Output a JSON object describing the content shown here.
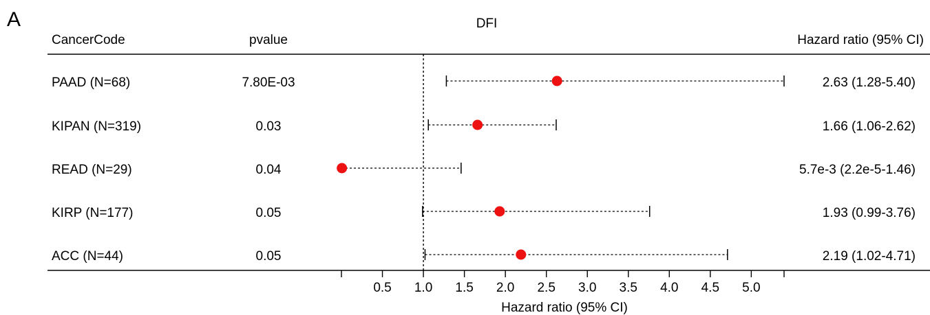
{
  "panel_label": "A",
  "chart_data": {
    "type": "forest",
    "title": "DFI",
    "headers": {
      "code": "CancerCode",
      "pvalue": "pvalue",
      "hr": "Hazard ratio (95% CI)"
    },
    "xlabel": "Hazard ratio (95% CI)",
    "xlim": [
      0,
      5.4
    ],
    "reference_line": 1.0,
    "ticks": [
      0,
      0.5,
      1.0,
      1.5,
      2.0,
      2.5,
      3.0,
      3.5,
      4.0,
      4.5,
      5.0,
      5.4
    ],
    "tick_labels": [
      "",
      "0.5",
      "1.0",
      "1.5",
      "2.0",
      "2.5",
      "3.0",
      "3.5",
      "4.0",
      "4.5",
      "5.0",
      ""
    ],
    "point_color": "#ee1111",
    "rows": [
      {
        "code": "PAAD (N=68)",
        "pvalue": "7.80E-03",
        "hr": 2.63,
        "lower": 1.28,
        "upper": 5.4,
        "hr_label": "2.63 (1.28-5.40)"
      },
      {
        "code": "KIPAN (N=319)",
        "pvalue": "0.03",
        "hr": 1.66,
        "lower": 1.06,
        "upper": 2.62,
        "hr_label": "1.66 (1.06-2.62)"
      },
      {
        "code": "READ (N=29)",
        "pvalue": "0.04",
        "hr": 0.0057,
        "lower": 2.2e-05,
        "upper": 1.46,
        "hr_label": "5.7e-3 (2.2e-5-1.46)"
      },
      {
        "code": "KIRP (N=177)",
        "pvalue": "0.05",
        "hr": 1.93,
        "lower": 0.99,
        "upper": 3.76,
        "hr_label": "1.93 (0.99-3.76)"
      },
      {
        "code": "ACC (N=44)",
        "pvalue": "0.05",
        "hr": 2.19,
        "lower": 1.02,
        "upper": 4.71,
        "hr_label": "2.19 (1.02-4.71)"
      }
    ]
  }
}
